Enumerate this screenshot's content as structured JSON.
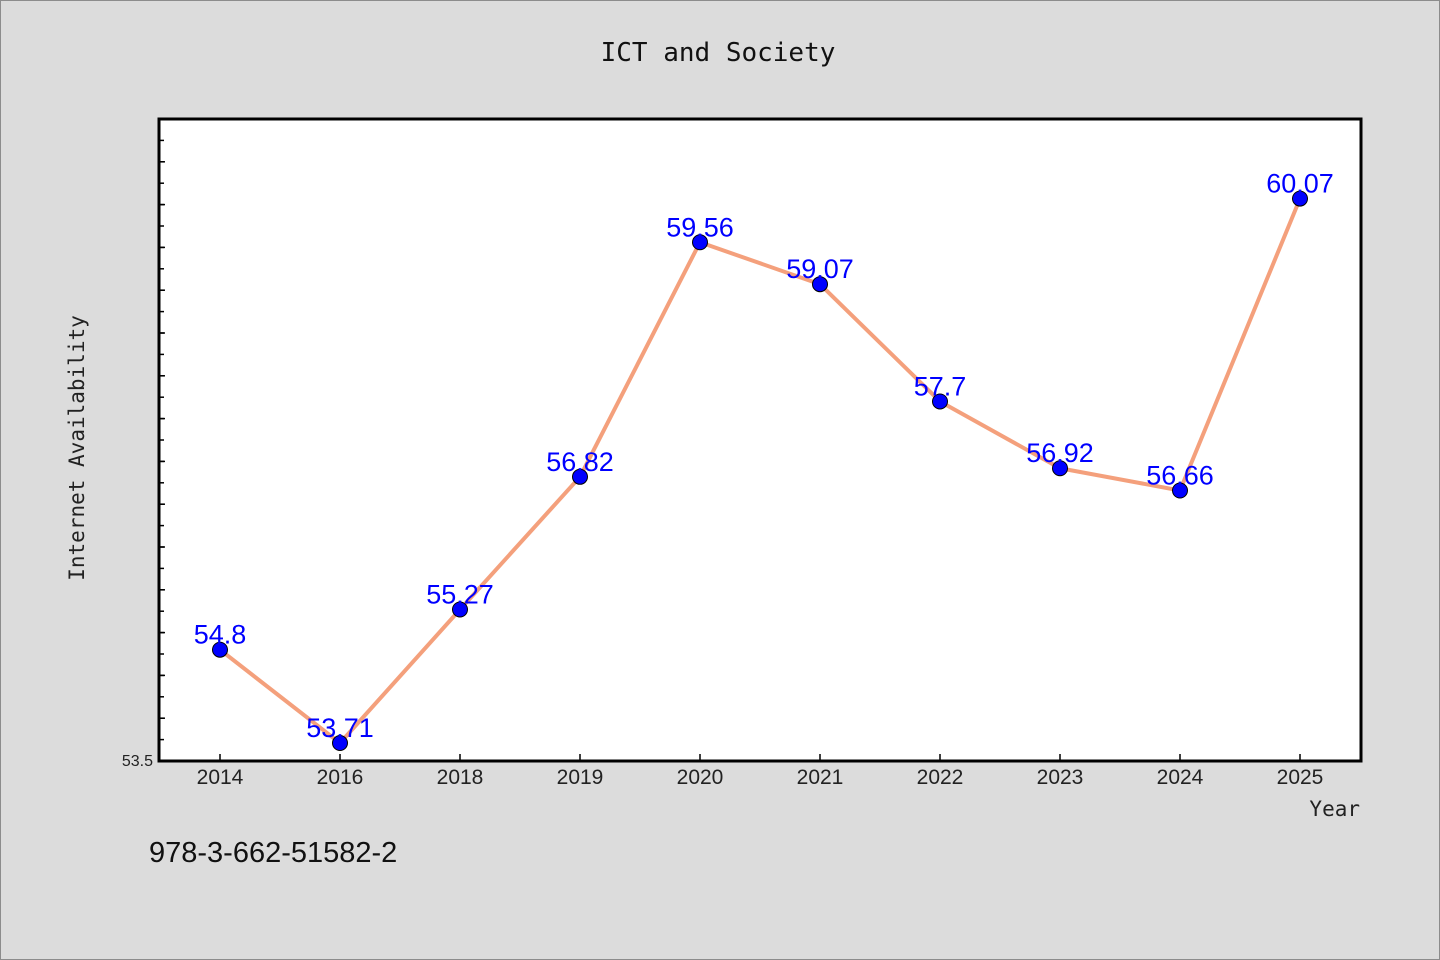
{
  "chart_data": {
    "type": "line",
    "title": "ICT and Society",
    "xlabel": "Year",
    "ylabel": "Internet Availability",
    "categories": [
      "2014",
      "2016",
      "2018",
      "2019",
      "2020",
      "2021",
      "2022",
      "2023",
      "2024",
      "2025"
    ],
    "series": [
      {
        "values": [
          54.8,
          53.71,
          55.27,
          56.82,
          59.56,
          59.07,
          57.7,
          56.92,
          56.66,
          60.07
        ],
        "labels": [
          "54.8",
          "53.71",
          "55.27",
          "56.82",
          "59.56",
          "59.07",
          "57.7",
          "56.92",
          "56.66",
          "60.07"
        ],
        "line_color": "#f4a07c",
        "marker_color": "#0000ff",
        "label_color": "#0000ff"
      }
    ],
    "ylim": [
      53.5,
      61.0
    ],
    "y_tick_label": "53.5",
    "grid": false,
    "legend": "none"
  },
  "footer": {
    "isbn": "978-3-662-51582-2"
  }
}
